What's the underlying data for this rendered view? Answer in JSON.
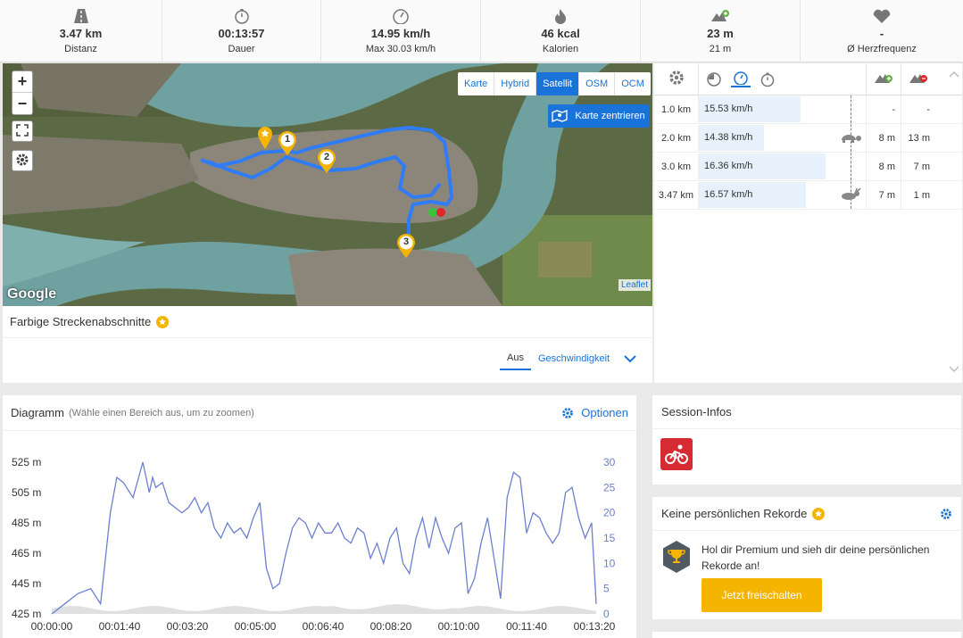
{
  "stats": [
    {
      "icon": "road-icon",
      "value": "3.47 km",
      "label": "Distanz"
    },
    {
      "icon": "stopwatch-icon",
      "value": "00:13:57",
      "label": "Dauer"
    },
    {
      "icon": "speedometer-icon",
      "value": "14.95 km/h",
      "label": "Max 30.03 km/h"
    },
    {
      "icon": "flame-icon",
      "value": "46 kcal",
      "label": "Kalorien"
    },
    {
      "icon": "elevation-up-icon",
      "value": "23 m",
      "label": "21 m"
    },
    {
      "icon": "heart-icon",
      "value": "-",
      "label": "Ø Herzfrequenz"
    }
  ],
  "map": {
    "zoom_in": "+",
    "zoom_out": "−",
    "layers": [
      "Karte",
      "Hybrid",
      "Satellit",
      "OSM",
      "OCM"
    ],
    "active_layer": "Satellit",
    "center_button": "Karte zentrieren",
    "google": "Google",
    "leaflet": "Leaflet",
    "markers": [
      "1",
      "2",
      "3"
    ]
  },
  "segments": {
    "title": "Farbige Streckenabschnitte",
    "option_off": "Aus",
    "option_speed": "Geschwindigkeit"
  },
  "splits": {
    "rows": [
      {
        "dist": "1.0 km",
        "speed": "15.53 km/h",
        "fill": 0.61,
        "animal": "",
        "up": "-",
        "down": "-"
      },
      {
        "dist": "2.0 km",
        "speed": "14.38 km/h",
        "fill": 0.39,
        "animal": "turtle-icon",
        "up": "8 m",
        "down": "13 m"
      },
      {
        "dist": "3.0 km",
        "speed": "16.36 km/h",
        "fill": 0.76,
        "animal": "",
        "up": "8 m",
        "down": "7 m"
      },
      {
        "dist": "3.47 km",
        "speed": "16.57 km/h",
        "fill": 0.64,
        "animal": "rabbit-icon",
        "up": "7 m",
        "down": "1 m"
      }
    ]
  },
  "chart_header": {
    "title": "Diagramm",
    "subtitle": "(Wähle einen Bereich aus, um zu zoomen)",
    "options": "Optionen"
  },
  "chart_data": {
    "type": "line",
    "yticks_left": [
      "525 m",
      "505 m",
      "485 m",
      "465 m",
      "445 m",
      "425 m"
    ],
    "yticks_right": [
      "30",
      "25",
      "20",
      "15",
      "10",
      "5",
      "0"
    ],
    "xticks": [
      "00:00:00",
      "00:01:40",
      "00:03:20",
      "00:05:00",
      "00:06:40",
      "00:08:20",
      "00:10:00",
      "00:11:40",
      "00:13:20"
    ],
    "ylim_left": [
      425,
      525
    ],
    "ylim_right": [
      0,
      30
    ],
    "xlim_seconds": [
      0,
      837
    ],
    "series": [
      {
        "x_seconds": [
          0,
          20,
          40,
          60,
          75,
          90,
          100,
          110,
          125,
          140,
          150,
          155,
          160,
          170,
          180,
          190,
          200,
          210,
          220,
          230,
          240,
          250,
          260,
          270,
          280,
          290,
          300,
          310,
          320,
          330,
          340,
          350,
          360,
          370,
          380,
          390,
          400,
          410,
          420,
          430,
          440,
          450,
          460,
          470,
          480,
          490,
          500,
          510,
          520,
          530,
          540,
          550,
          560,
          570,
          580,
          590,
          600,
          610,
          620,
          630,
          640,
          650,
          660,
          670,
          680,
          690,
          700,
          710,
          720,
          730,
          740,
          750,
          760,
          770,
          780,
          790,
          800,
          810,
          820,
          830,
          837
        ],
        "values": [
          0,
          2,
          4,
          5,
          2,
          20,
          27,
          26,
          23,
          30,
          24,
          27,
          25,
          26,
          22,
          21,
          20,
          21,
          23,
          20,
          22,
          17,
          15,
          18,
          16,
          17,
          15,
          19,
          22,
          9,
          5,
          6,
          12,
          17,
          19,
          18,
          15,
          18,
          16,
          16,
          18,
          15,
          14,
          17,
          16,
          11,
          14,
          10,
          15,
          17,
          10,
          8,
          15,
          19,
          13,
          19,
          15,
          12,
          17,
          18,
          4,
          7,
          14,
          19,
          11,
          3,
          23,
          28,
          27,
          16,
          20,
          19,
          16,
          14,
          16,
          24,
          25,
          19,
          15,
          18,
          2
        ],
        "color": "#6c7fd0"
      }
    ],
    "elevation_fill_color": "#e0e0e0"
  },
  "session": {
    "title": "Session-Infos",
    "sport_icon": "bike-icon"
  },
  "records": {
    "title": "Keine persönlichen Rekorde",
    "text": "Hol dir Premium und sieh dir deine persönlichen Rekorde an!",
    "button": "Jetzt freischalten"
  },
  "colors": {
    "accent": "#1a73d9",
    "route": "#2f7cf6",
    "premium": "#f4b400",
    "sport": "#d62b32"
  }
}
